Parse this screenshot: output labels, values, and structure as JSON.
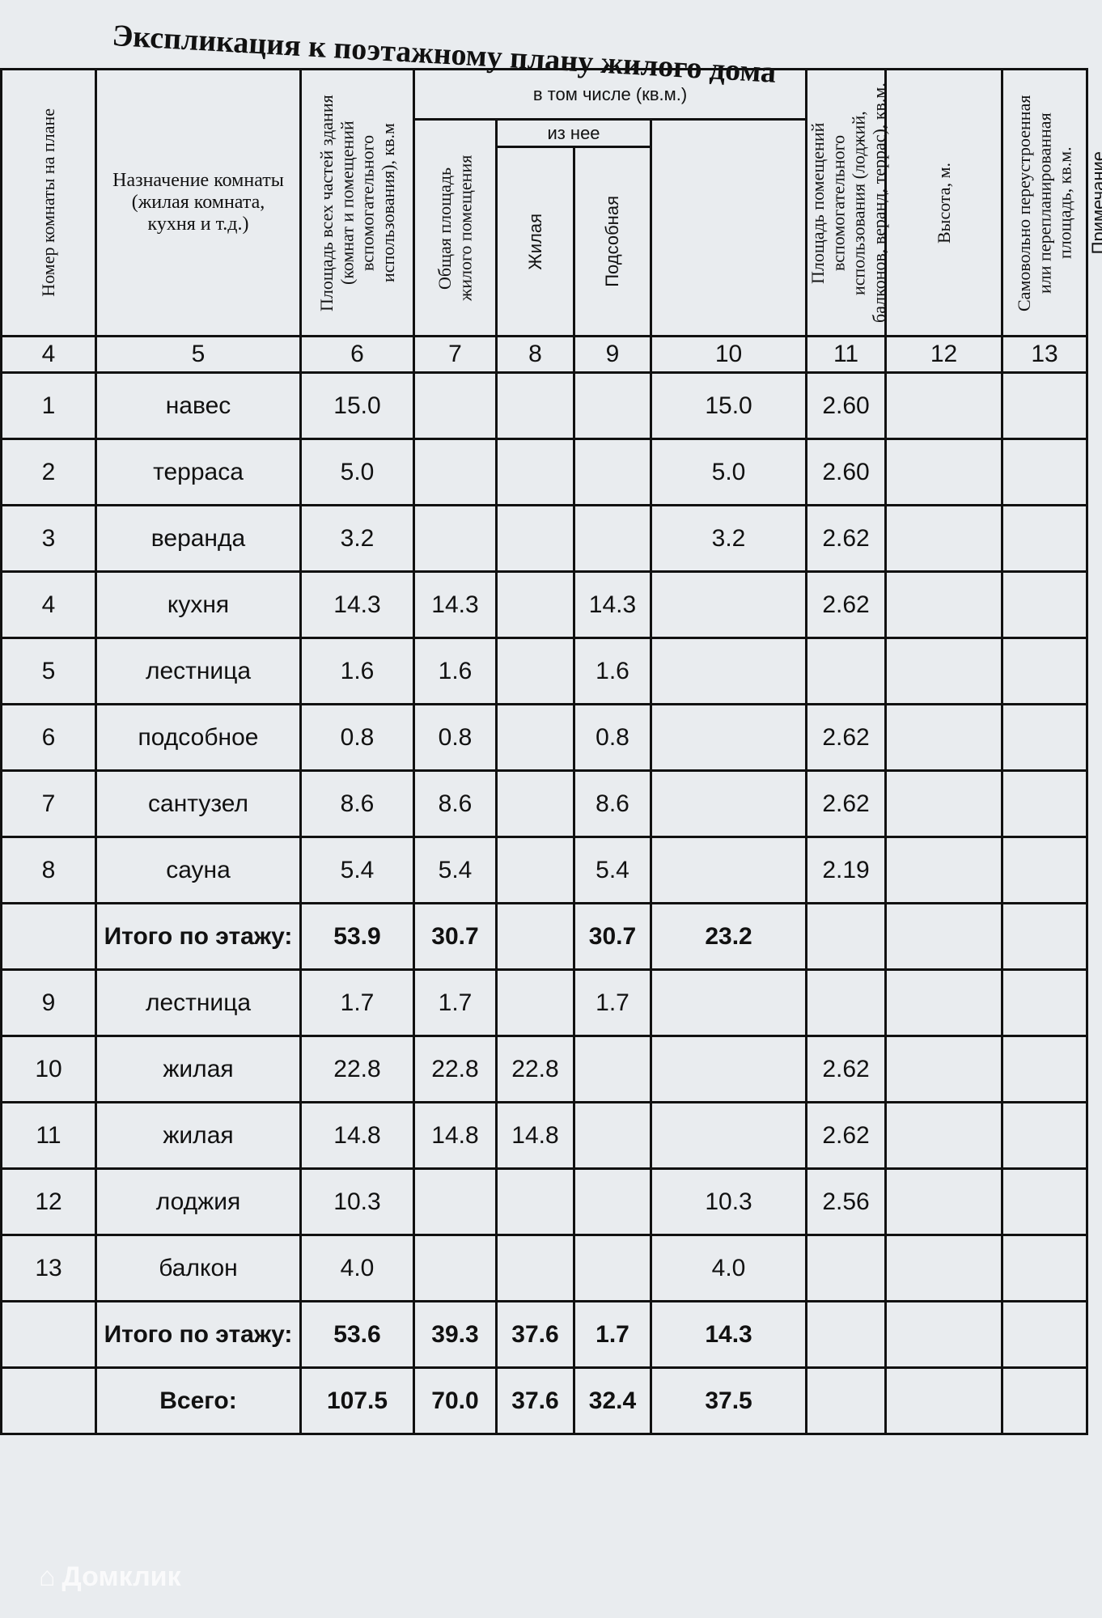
{
  "title": "Экспликация к поэтажному плану жилого дома",
  "headers": {
    "c4": "Номер комнаты на плане",
    "c5": "Назначение комнаты (жилая комната, кухня и т.д.)",
    "c6": "Площадь всех частей здания (комнат и помещений вспомогательного использования), кв.м",
    "group": "в том числе (кв.м.)",
    "c7": "Общая площадь жилого помещения",
    "subgroup": "из нее",
    "c8": "Жилая",
    "c9": "Подсобная",
    "c10": "Площадь помещений вспомогательного использования (лоджий, балконов, веранд, террас), кв.м.",
    "c11": "Высота, м.",
    "c12": "Самовольно переустроенная или перепланированная площадь, кв.м.",
    "c13": "Примечание"
  },
  "column_numbers": [
    "4",
    "5",
    "6",
    "7",
    "8",
    "9",
    "10",
    "11",
    "12",
    "13"
  ],
  "rows": [
    {
      "cells": [
        "1",
        "навес",
        "15.0",
        "",
        "",
        "",
        "15.0",
        "2.60",
        "",
        ""
      ]
    },
    {
      "cells": [
        "2",
        "терраса",
        "5.0",
        "",
        "",
        "",
        "5.0",
        "2.60",
        "",
        ""
      ]
    },
    {
      "cells": [
        "3",
        "веранда",
        "3.2",
        "",
        "",
        "",
        "3.2",
        "2.62",
        "",
        ""
      ]
    },
    {
      "cells": [
        "4",
        "кухня",
        "14.3",
        "14.3",
        "",
        "14.3",
        "",
        "2.62",
        "",
        ""
      ]
    },
    {
      "cells": [
        "5",
        "лестница",
        "1.6",
        "1.6",
        "",
        "1.6",
        "",
        "",
        "",
        ""
      ]
    },
    {
      "cells": [
        "6",
        "подсобное",
        "0.8",
        "0.8",
        "",
        "0.8",
        "",
        "2.62",
        "",
        ""
      ]
    },
    {
      "cells": [
        "7",
        "сантузел",
        "8.6",
        "8.6",
        "",
        "8.6",
        "",
        "2.62",
        "",
        ""
      ]
    },
    {
      "cells": [
        "8",
        "сауна",
        "5.4",
        "5.4",
        "",
        "5.4",
        "",
        "2.19",
        "",
        ""
      ]
    },
    {
      "cells": [
        "",
        "Итого по этажу:",
        "53.9",
        "30.7",
        "",
        "30.7",
        "23.2",
        "",
        "",
        ""
      ],
      "total": true
    },
    {
      "cells": [
        "9",
        "лестница",
        "1.7",
        "1.7",
        "",
        "1.7",
        "",
        "",
        "",
        ""
      ]
    },
    {
      "cells": [
        "10",
        "жилая",
        "22.8",
        "22.8",
        "22.8",
        "",
        "",
        "2.62",
        "",
        ""
      ]
    },
    {
      "cells": [
        "11",
        "жилая",
        "14.8",
        "14.8",
        "14.8",
        "",
        "",
        "2.62",
        "",
        ""
      ]
    },
    {
      "cells": [
        "12",
        "лоджия",
        "10.3",
        "",
        "",
        "",
        "10.3",
        "2.56",
        "",
        ""
      ]
    },
    {
      "cells": [
        "13",
        "балкон",
        "4.0",
        "",
        "",
        "",
        "4.0",
        "",
        "",
        ""
      ]
    },
    {
      "cells": [
        "",
        "Итого по этажу:",
        "53.6",
        "39.3",
        "37.6",
        "1.7",
        "14.3",
        "",
        "",
        ""
      ],
      "total": true
    },
    {
      "cells": [
        "",
        "Всего:",
        "107.5",
        "70.0",
        "37.6",
        "32.4",
        "37.5",
        "",
        "",
        ""
      ],
      "total": true
    }
  ],
  "watermark": "Домклик"
}
